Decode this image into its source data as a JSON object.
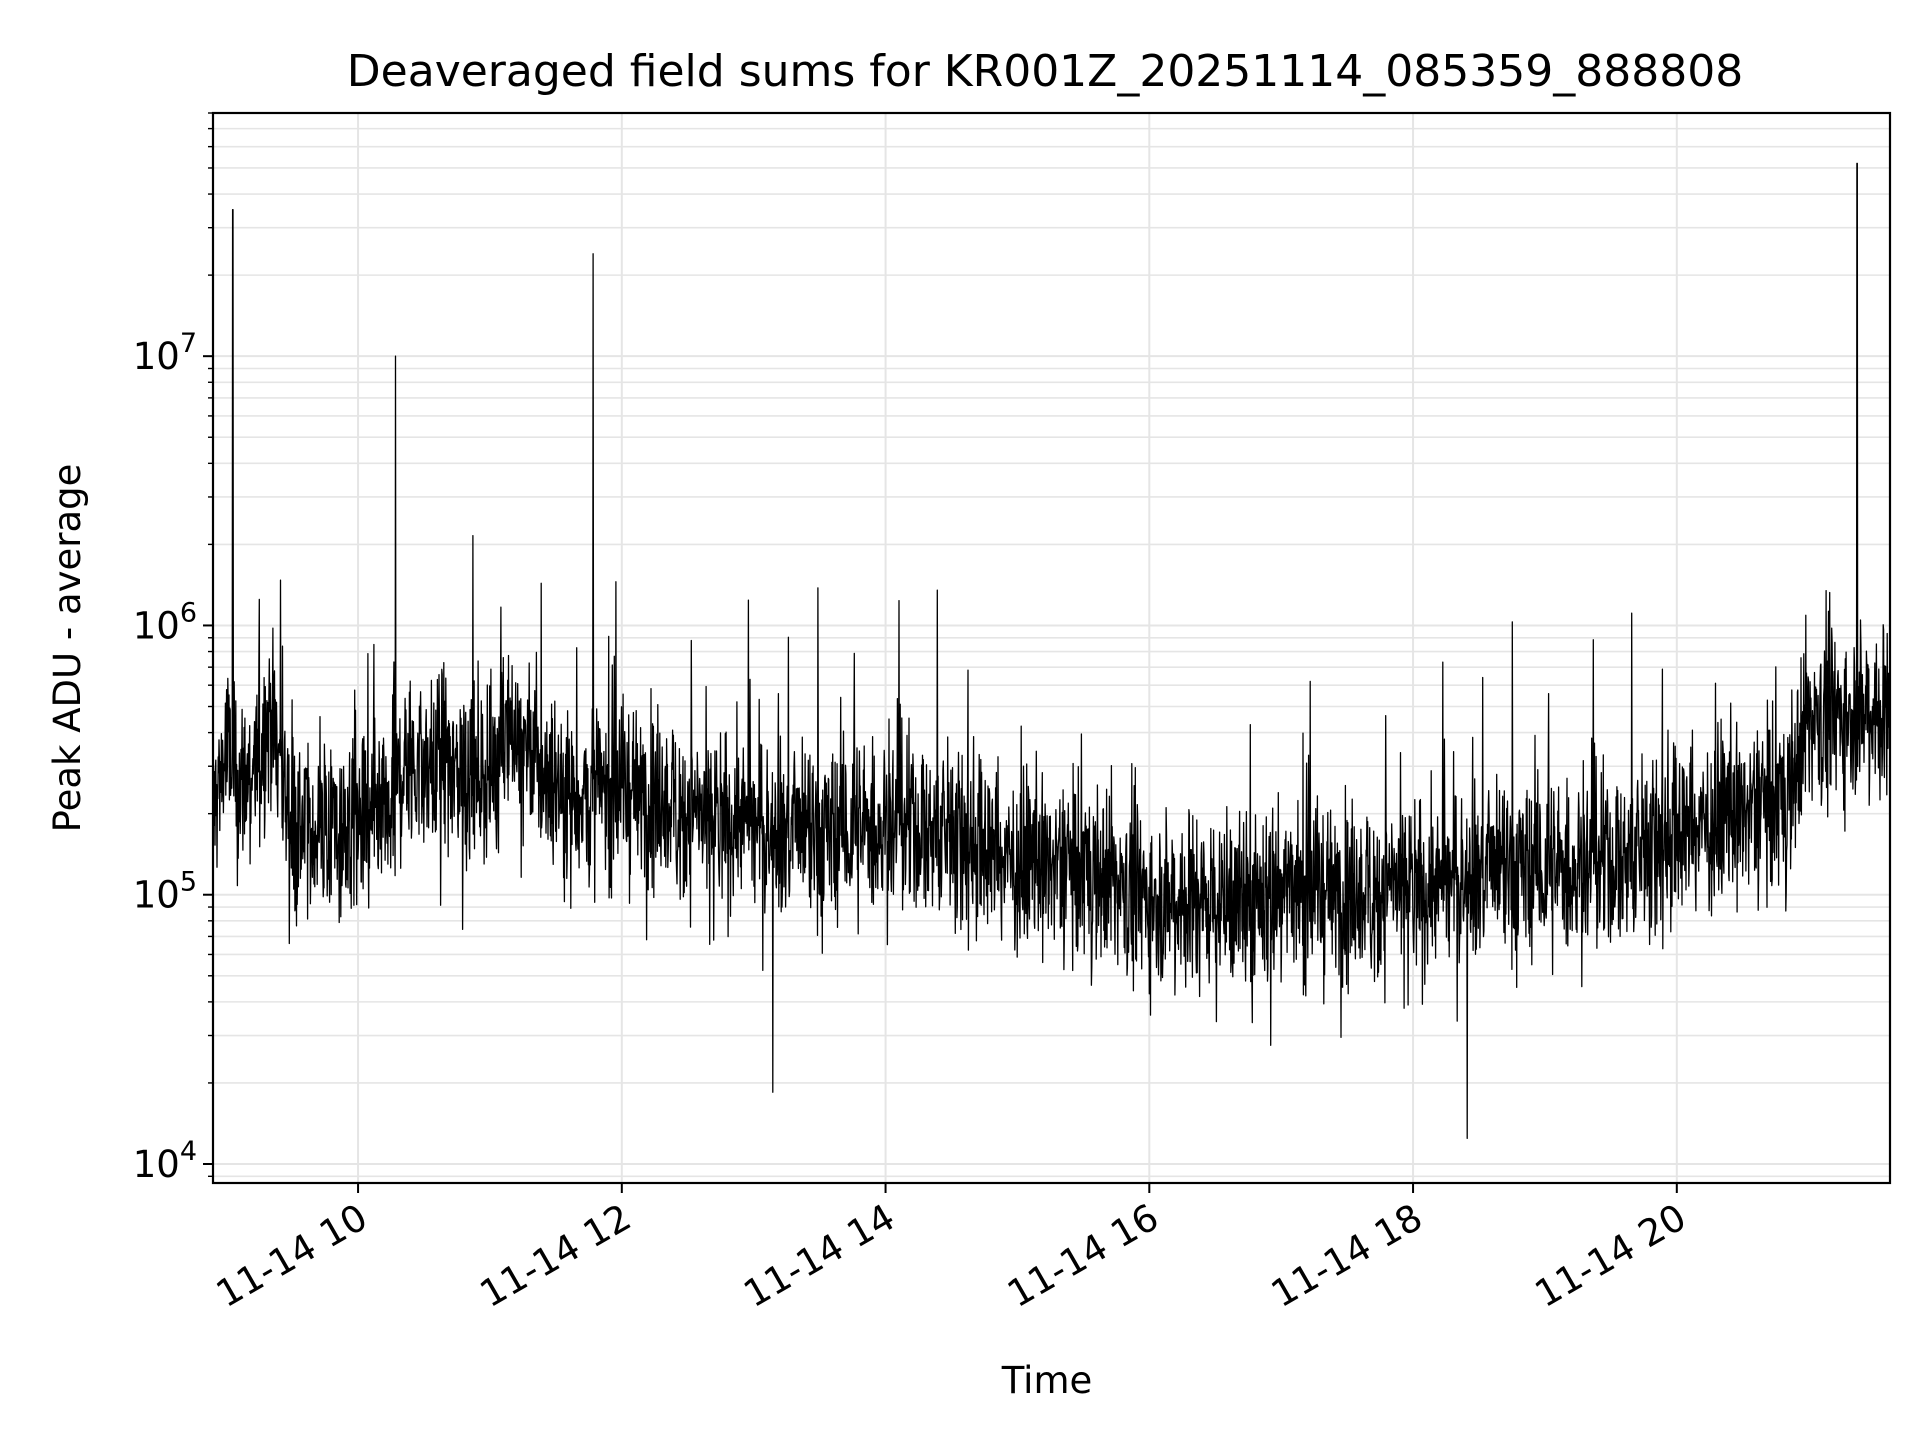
{
  "chart_data": {
    "type": "line",
    "title": "Deaveraged field sums for KR001Z_20251114_085359_888808",
    "xlabel": "Time",
    "ylabel": "Peak ADU - average",
    "yscale": "log",
    "xlim": [
      "2025-11-14 08:54",
      "2025-11-14 21:37"
    ],
    "ylim": [
      8500,
      80000000
    ],
    "grid": true,
    "line_color": "#000000",
    "grid_color": "#e5e5e5",
    "x_ticks": [
      {
        "value": "2025-11-14 10:00",
        "label": "11-14 10"
      },
      {
        "value": "2025-11-14 12:00",
        "label": "11-14 12"
      },
      {
        "value": "2025-11-14 14:00",
        "label": "11-14 14"
      },
      {
        "value": "2025-11-14 16:00",
        "label": "11-14 16"
      },
      {
        "value": "2025-11-14 18:00",
        "label": "11-14 18"
      },
      {
        "value": "2025-11-14 20:00",
        "label": "11-14 20"
      }
    ],
    "y_ticks": [
      {
        "value": 10000,
        "base": "10",
        "exp": "4"
      },
      {
        "value": 100000,
        "base": "10",
        "exp": "5"
      },
      {
        "value": 1000000,
        "base": "10",
        "exp": "6"
      },
      {
        "value": 10000000,
        "base": "10",
        "exp": "7"
      }
    ],
    "series": [
      {
        "x": [
          "2025-11-14 08:54",
          "2025-11-14 09:00",
          "2025-11-14 09:03",
          "2025-11-14 09:06",
          "2025-11-14 09:15",
          "2025-11-14 09:20",
          "2025-11-14 09:30",
          "2025-11-14 09:40",
          "2025-11-14 10:00",
          "2025-11-14 10:15",
          "2025-11-14 10:17",
          "2025-11-14 10:20",
          "2025-11-14 10:40",
          "2025-11-14 11:00",
          "2025-11-14 11:08",
          "2025-11-14 11:20",
          "2025-11-14 11:40",
          "2025-11-14 11:47",
          "2025-11-14 12:00",
          "2025-11-14 12:20",
          "2025-11-14 12:40",
          "2025-11-14 12:55",
          "2025-11-14 13:00",
          "2025-11-14 13:30",
          "2025-11-14 14:00",
          "2025-11-14 14:30",
          "2025-11-14 15:00",
          "2025-11-14 15:30",
          "2025-11-14 16:00",
          "2025-11-14 16:30",
          "2025-11-14 16:47",
          "2025-11-14 17:00",
          "2025-11-14 17:30",
          "2025-11-14 18:00",
          "2025-11-14 18:30",
          "2025-11-14 19:00",
          "2025-11-14 19:30",
          "2025-11-14 20:00",
          "2025-11-14 20:30",
          "2025-11-14 20:50",
          "2025-11-14 21:00",
          "2025-11-14 21:15",
          "2025-11-14 21:22",
          "2025-11-14 21:30",
          "2025-11-14 21:37"
        ],
        "y": [
          200000,
          350000,
          35000000,
          250000,
          300000,
          500000,
          180000,
          170000,
          170000,
          180000,
          10000000,
          300000,
          300000,
          280000,
          450000,
          300000,
          230000,
          24000000,
          250000,
          220000,
          180000,
          200000,
          180000,
          160000,
          180000,
          170000,
          130000,
          125000,
          100000,
          95000,
          90000,
          110000,
          100000,
          105000,
          120000,
          120000,
          130000,
          170000,
          200000,
          230000,
          450000,
          480000,
          52000000,
          500000,
          450000
        ]
      }
    ]
  }
}
